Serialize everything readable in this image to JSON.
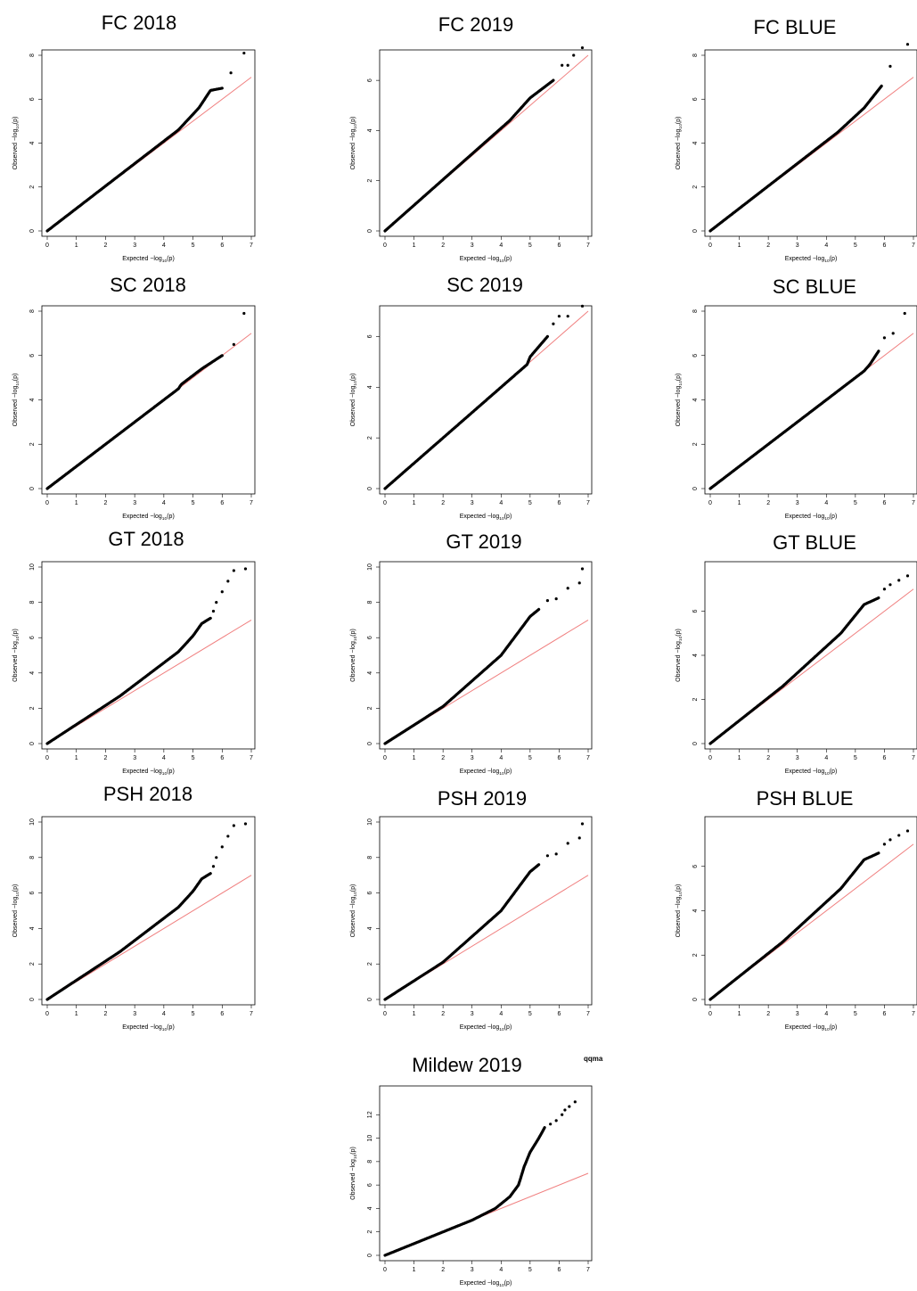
{
  "figure": {
    "corner_label": "qqma"
  },
  "axis_text": {
    "x_label": "Expected",
    "x_math": "-log10(p)",
    "y_label": "Observed",
    "y_math": "-log10(p)"
  },
  "colors": {
    "points": "#000000",
    "reference_line": "#f08080",
    "frame": "#000000",
    "text": "#000000"
  },
  "chart_data": [
    {
      "type": "scatter",
      "title": "FC 2018",
      "xlim": [
        0,
        7
      ],
      "ylim": [
        0,
        8
      ],
      "xticks": [
        0,
        1,
        2,
        3,
        4,
        5,
        6,
        7
      ],
      "yticks": [
        0,
        2,
        4,
        6,
        8
      ],
      "knots": [
        [
          0,
          0
        ],
        [
          4.5,
          4.6
        ],
        [
          5.2,
          5.6
        ],
        [
          5.6,
          6.4
        ],
        [
          6.0,
          6.5
        ]
      ],
      "tail_points": [
        [
          6.3,
          7.2
        ],
        [
          6.75,
          8.1
        ]
      ]
    },
    {
      "type": "scatter",
      "title": "FC 2019",
      "xlim": [
        0,
        7
      ],
      "ylim": [
        0,
        7
      ],
      "xticks": [
        0,
        1,
        2,
        3,
        4,
        5,
        6,
        7
      ],
      "yticks": [
        0,
        2,
        4,
        6
      ],
      "knots": [
        [
          0,
          0
        ],
        [
          4.3,
          4.4
        ],
        [
          5.0,
          5.3
        ],
        [
          5.8,
          6.0
        ]
      ],
      "tail_points": [
        [
          6.1,
          6.6
        ],
        [
          6.3,
          6.6
        ],
        [
          6.5,
          7.0
        ],
        [
          6.8,
          7.3
        ]
      ]
    },
    {
      "type": "scatter",
      "title": "FC BLUE",
      "xlim": [
        0,
        7
      ],
      "ylim": [
        0,
        8
      ],
      "xticks": [
        0,
        1,
        2,
        3,
        4,
        5,
        6,
        7
      ],
      "yticks": [
        0,
        2,
        4,
        6,
        8
      ],
      "knots": [
        [
          0,
          0
        ],
        [
          4.4,
          4.5
        ],
        [
          5.3,
          5.6
        ],
        [
          5.9,
          6.6
        ]
      ],
      "tail_points": [
        [
          6.2,
          7.5
        ],
        [
          6.8,
          8.5
        ]
      ]
    },
    {
      "type": "scatter",
      "title": "SC 2018",
      "xlim": [
        0,
        7
      ],
      "ylim": [
        0,
        8
      ],
      "xticks": [
        0,
        1,
        2,
        3,
        4,
        5,
        6,
        7
      ],
      "yticks": [
        0,
        2,
        4,
        6,
        8
      ],
      "knots": [
        [
          0,
          0
        ],
        [
          4.5,
          4.5
        ],
        [
          4.6,
          4.7
        ],
        [
          5.3,
          5.4
        ],
        [
          6.0,
          6.0
        ]
      ],
      "tail_points": [
        [
          6.4,
          6.5
        ],
        [
          6.75,
          7.9
        ]
      ]
    },
    {
      "type": "scatter",
      "title": "SC 2019",
      "xlim": [
        0,
        7
      ],
      "ylim": [
        0,
        7
      ],
      "xticks": [
        0,
        1,
        2,
        3,
        4,
        5,
        6,
        7
      ],
      "yticks": [
        0,
        2,
        4,
        6
      ],
      "knots": [
        [
          0,
          0
        ],
        [
          4.9,
          4.9
        ],
        [
          5.0,
          5.2
        ],
        [
          5.6,
          6.0
        ]
      ],
      "tail_points": [
        [
          5.8,
          6.5
        ],
        [
          6.0,
          6.8
        ],
        [
          6.3,
          6.8
        ],
        [
          6.8,
          7.2
        ]
      ]
    },
    {
      "type": "scatter",
      "title": "SC BLUE",
      "xlim": [
        0,
        7
      ],
      "ylim": [
        0,
        8
      ],
      "xticks": [
        0,
        1,
        2,
        3,
        4,
        5,
        6,
        7
      ],
      "yticks": [
        0,
        2,
        4,
        6,
        8
      ],
      "knots": [
        [
          0,
          0
        ],
        [
          5.0,
          5.0
        ],
        [
          5.3,
          5.3
        ],
        [
          5.5,
          5.6
        ],
        [
          5.8,
          6.2
        ]
      ],
      "tail_points": [
        [
          6.0,
          6.8
        ],
        [
          6.3,
          7.0
        ],
        [
          6.7,
          7.9
        ]
      ]
    },
    {
      "type": "scatter",
      "title": "GT 2018",
      "xlim": [
        0,
        7
      ],
      "ylim": [
        0,
        10
      ],
      "xticks": [
        0,
        1,
        2,
        3,
        4,
        5,
        6,
        7
      ],
      "yticks": [
        0,
        2,
        4,
        6,
        8,
        10
      ],
      "knots": [
        [
          0,
          0
        ],
        [
          2.5,
          2.7
        ],
        [
          4.5,
          5.2
        ],
        [
          5.0,
          6.1
        ],
        [
          5.3,
          6.8
        ],
        [
          5.6,
          7.1
        ]
      ],
      "tail_points": [
        [
          5.7,
          7.5
        ],
        [
          5.8,
          8.0
        ],
        [
          6.0,
          8.6
        ],
        [
          6.2,
          9.2
        ],
        [
          6.4,
          9.8
        ],
        [
          6.8,
          9.9
        ]
      ]
    },
    {
      "type": "scatter",
      "title": "GT 2019",
      "xlim": [
        0,
        7
      ],
      "ylim": [
        0,
        10
      ],
      "xticks": [
        0,
        1,
        2,
        3,
        4,
        5,
        6,
        7
      ],
      "yticks": [
        0,
        2,
        4,
        6,
        8,
        10
      ],
      "knots": [
        [
          0,
          0
        ],
        [
          2.0,
          2.1
        ],
        [
          4.0,
          5.0
        ],
        [
          5.0,
          7.2
        ],
        [
          5.3,
          7.6
        ]
      ],
      "tail_points": [
        [
          5.6,
          8.1
        ],
        [
          5.9,
          8.2
        ],
        [
          6.3,
          8.8
        ],
        [
          6.7,
          9.1
        ],
        [
          6.8,
          9.9
        ]
      ]
    },
    {
      "type": "scatter",
      "title": "GT BLUE",
      "xlim": [
        0,
        7
      ],
      "ylim": [
        0,
        8
      ],
      "xticks": [
        0,
        1,
        2,
        3,
        4,
        5,
        6,
        7
      ],
      "yticks": [
        0,
        2,
        4,
        6
      ],
      "knots": [
        [
          0,
          0
        ],
        [
          2.5,
          2.6
        ],
        [
          4.5,
          5.0
        ],
        [
          5.3,
          6.3
        ],
        [
          5.8,
          6.6
        ]
      ],
      "tail_points": [
        [
          6.0,
          7.0
        ],
        [
          6.2,
          7.2
        ],
        [
          6.5,
          7.4
        ],
        [
          6.8,
          7.6
        ]
      ]
    },
    {
      "type": "scatter",
      "title": "PSH 2018",
      "xlim": [
        0,
        7
      ],
      "ylim": [
        0,
        10
      ],
      "xticks": [
        0,
        1,
        2,
        3,
        4,
        5,
        6,
        7
      ],
      "yticks": [
        0,
        2,
        4,
        6,
        8,
        10
      ],
      "knots": [
        [
          0,
          0
        ],
        [
          2.5,
          2.7
        ],
        [
          4.5,
          5.2
        ],
        [
          5.0,
          6.1
        ],
        [
          5.3,
          6.8
        ],
        [
          5.6,
          7.1
        ]
      ],
      "tail_points": [
        [
          5.7,
          7.5
        ],
        [
          5.8,
          8.0
        ],
        [
          6.0,
          8.6
        ],
        [
          6.2,
          9.2
        ],
        [
          6.4,
          9.8
        ],
        [
          6.8,
          9.9
        ]
      ]
    },
    {
      "type": "scatter",
      "title": "PSH 2019",
      "xlim": [
        0,
        7
      ],
      "ylim": [
        0,
        10
      ],
      "xticks": [
        0,
        1,
        2,
        3,
        4,
        5,
        6,
        7
      ],
      "yticks": [
        0,
        2,
        4,
        6,
        8,
        10
      ],
      "knots": [
        [
          0,
          0
        ],
        [
          2.0,
          2.1
        ],
        [
          4.0,
          5.0
        ],
        [
          5.0,
          7.2
        ],
        [
          5.3,
          7.6
        ]
      ],
      "tail_points": [
        [
          5.6,
          8.1
        ],
        [
          5.9,
          8.2
        ],
        [
          6.3,
          8.8
        ],
        [
          6.7,
          9.1
        ],
        [
          6.8,
          9.9
        ]
      ]
    },
    {
      "type": "scatter",
      "title": "PSH BLUE",
      "xlim": [
        0,
        7
      ],
      "ylim": [
        0,
        8
      ],
      "xticks": [
        0,
        1,
        2,
        3,
        4,
        5,
        6,
        7
      ],
      "yticks": [
        0,
        2,
        4,
        6
      ],
      "knots": [
        [
          0,
          0
        ],
        [
          2.5,
          2.6
        ],
        [
          4.5,
          5.0
        ],
        [
          5.3,
          6.3
        ],
        [
          5.8,
          6.6
        ]
      ],
      "tail_points": [
        [
          6.0,
          7.0
        ],
        [
          6.2,
          7.2
        ],
        [
          6.5,
          7.4
        ],
        [
          6.8,
          7.6
        ]
      ]
    },
    {
      "type": "scatter",
      "title": "Mildew 2019",
      "xlim": [
        0,
        7
      ],
      "ylim": [
        0,
        14
      ],
      "xticks": [
        0,
        1,
        2,
        3,
        4,
        5,
        6,
        7
      ],
      "yticks": [
        0,
        2,
        4,
        6,
        8,
        10,
        12
      ],
      "knots": [
        [
          0,
          0
        ],
        [
          3.0,
          3.0
        ],
        [
          3.8,
          4.0
        ],
        [
          4.3,
          5.0
        ],
        [
          4.6,
          6.0
        ],
        [
          4.8,
          7.6
        ],
        [
          5.0,
          8.8
        ],
        [
          5.3,
          10.0
        ],
        [
          5.5,
          10.9
        ]
      ],
      "tail_points": [
        [
          5.7,
          11.2
        ],
        [
          5.9,
          11.5
        ],
        [
          6.1,
          12.0
        ],
        [
          6.2,
          12.4
        ],
        [
          6.35,
          12.7
        ],
        [
          6.55,
          13.1
        ]
      ]
    }
  ]
}
